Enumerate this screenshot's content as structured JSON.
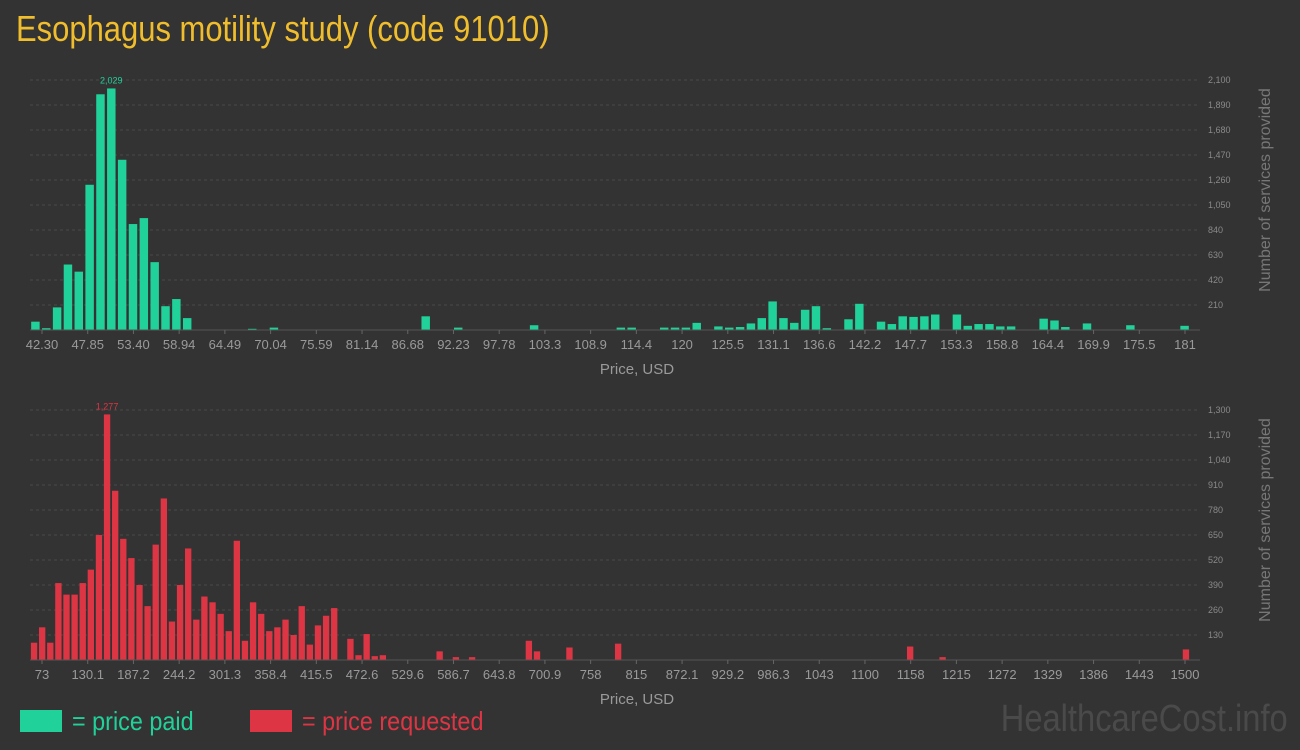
{
  "title": "Esophagus motility study (code 91010)",
  "watermark": "HealthcareCost.info",
  "legend": {
    "paid": {
      "label": "= price paid",
      "color": "#21d19a"
    },
    "requested": {
      "label": "= price requested",
      "color": "#de3544"
    }
  },
  "chart_data": [
    {
      "type": "bar",
      "name": "price-paid",
      "color": "#21d19a",
      "xlabel": "Price, USD",
      "ylabel": "Number of services provided",
      "ylim": [
        0,
        2100
      ],
      "yticks": [
        210,
        420,
        630,
        840,
        1050,
        1260,
        1470,
        1680,
        1890,
        2100
      ],
      "ytick_labels": [
        "210",
        "420",
        "630",
        "840",
        "1,050",
        "1,260",
        "1,470",
        "1,680",
        "1,890",
        "2,100"
      ],
      "xtick_labels": [
        "42.30",
        "47.85",
        "53.40",
        "58.94",
        "64.49",
        "70.04",
        "75.59",
        "81.14",
        "86.68",
        "92.23",
        "97.78",
        "103.3",
        "108.9",
        "114.4",
        "120",
        "125.5",
        "131.1",
        "136.6",
        "142.2",
        "147.7",
        "153.3",
        "158.8",
        "164.4",
        "169.9",
        "175.5",
        "181"
      ],
      "peak_label": "2,029",
      "values": [
        70,
        15,
        190,
        550,
        490,
        1220,
        1980,
        2029,
        1430,
        890,
        940,
        570,
        200,
        260,
        100,
        0,
        0,
        0,
        0,
        0,
        10,
        0,
        20,
        0,
        0,
        0,
        0,
        0,
        0,
        0,
        0,
        0,
        0,
        0,
        0,
        0,
        115,
        0,
        0,
        20,
        0,
        0,
        0,
        0,
        0,
        0,
        40,
        0,
        0,
        0,
        0,
        0,
        0,
        0,
        20,
        20,
        0,
        0,
        20,
        20,
        20,
        60,
        0,
        30,
        20,
        25,
        55,
        100,
        240,
        100,
        60,
        170,
        200,
        15,
        0,
        90,
        220,
        0,
        70,
        50,
        115,
        110,
        115,
        130,
        0,
        130,
        35,
        50,
        50,
        30,
        30,
        0,
        0,
        95,
        80,
        25,
        0,
        55,
        0,
        0,
        0,
        40,
        0,
        0,
        0,
        0,
        35
      ]
    },
    {
      "type": "bar",
      "name": "price-requested",
      "color": "#de3544",
      "xlabel": "Price, USD",
      "ylabel": "Number of services provided",
      "ylim": [
        0,
        1300
      ],
      "yticks": [
        130,
        260,
        390,
        520,
        650,
        780,
        910,
        1040,
        1170,
        1300
      ],
      "ytick_labels": [
        "130",
        "260",
        "390",
        "520",
        "650",
        "780",
        "910",
        "1,040",
        "1,170",
        "1,300"
      ],
      "xtick_labels": [
        "73",
        "130.1",
        "187.2",
        "244.2",
        "301.3",
        "358.4",
        "415.5",
        "472.6",
        "529.6",
        "586.7",
        "643.8",
        "700.9",
        "758",
        "815",
        "872.1",
        "929.2",
        "986.3",
        "1043",
        "1100",
        "1158",
        "1215",
        "1272",
        "1329",
        "1386",
        "1443",
        "1500"
      ],
      "peak_label": "1,277",
      "values": [
        90,
        170,
        90,
        400,
        340,
        340,
        400,
        470,
        650,
        1277,
        880,
        630,
        530,
        390,
        280,
        600,
        840,
        200,
        390,
        580,
        210,
        330,
        300,
        240,
        150,
        620,
        100,
        300,
        240,
        150,
        170,
        210,
        130,
        280,
        80,
        180,
        230,
        270,
        0,
        110,
        25,
        135,
        20,
        25,
        0,
        0,
        0,
        0,
        0,
        0,
        45,
        0,
        15,
        0,
        15,
        0,
        0,
        0,
        0,
        0,
        0,
        100,
        45,
        0,
        0,
        0,
        65,
        0,
        0,
        0,
        0,
        0,
        85,
        0,
        0,
        0,
        0,
        0,
        0,
        0,
        0,
        0,
        0,
        0,
        0,
        0,
        0,
        0,
        0,
        0,
        0,
        0,
        0,
        0,
        0,
        0,
        0,
        0,
        0,
        0,
        0,
        0,
        0,
        0,
        0,
        0,
        0,
        0,
        70,
        0,
        0,
        0,
        15,
        0,
        0,
        0,
        0,
        0,
        0,
        0,
        0,
        0,
        0,
        0,
        0,
        0,
        0,
        0,
        0,
        0,
        0,
        0,
        0,
        0,
        0,
        0,
        0,
        0,
        0,
        0,
        0,
        0,
        55
      ]
    }
  ]
}
